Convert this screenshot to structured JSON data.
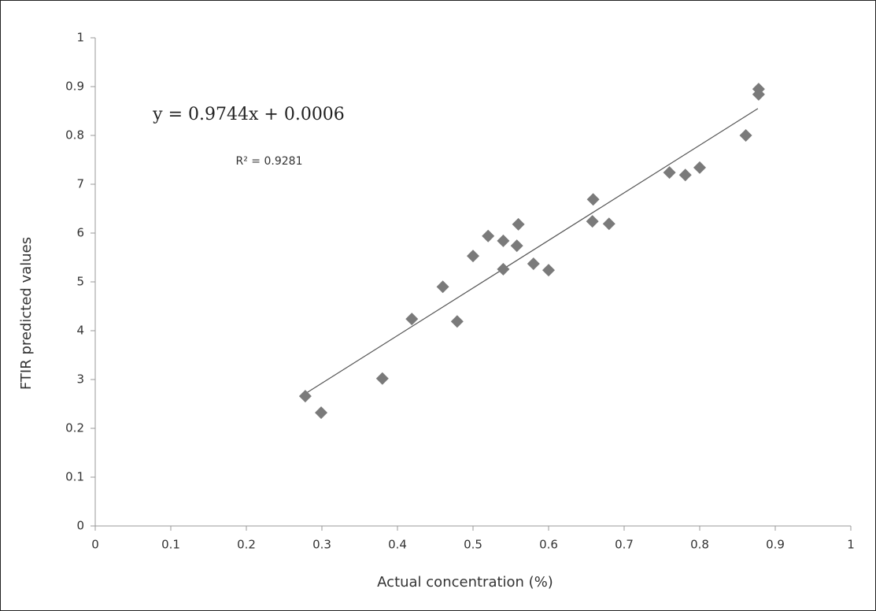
{
  "chart_data": {
    "type": "scatter",
    "xlabel": "Actual concentration (%)",
    "ylabel": "FTIR predicted values",
    "annotations": [
      "y = 0.9744x + 0.0006",
      "R² = 0.9281"
    ],
    "series": [
      {
        "color": "#7a7a7a",
        "x": [
          0.278,
          0.299,
          0.38,
          0.419,
          0.46,
          0.479,
          0.5,
          0.52,
          0.54,
          0.54,
          0.558,
          0.56,
          0.58,
          0.6,
          0.659,
          0.658,
          0.68,
          0.76,
          0.781,
          0.8,
          0.861,
          0.878,
          0.878
        ],
        "values": [
          0.266,
          0.232,
          0.302,
          0.424,
          0.49,
          0.419,
          0.553,
          0.594,
          0.584,
          0.526,
          0.574,
          0.618,
          0.537,
          0.524,
          0.669,
          0.624,
          0.619,
          0.724,
          0.719,
          0.734,
          0.8,
          0.895,
          0.884
        ]
      }
    ],
    "trendline": {
      "x": [
        0.28,
        0.877
      ],
      "values": [
        0.273,
        0.855
      ],
      "color": "#555555"
    },
    "xlim": [
      0,
      1
    ],
    "xticks": [
      0,
      0.1,
      0.2,
      0.3,
      0.4,
      0.5,
      0.6,
      0.7,
      0.8,
      0.9,
      1
    ],
    "ylim": [
      0,
      1
    ],
    "yticks": [
      0,
      0.1,
      0.2,
      {
        "value": 0.3,
        "label": "3"
      },
      {
        "value": 0.4,
        "label": "4"
      },
      {
        "value": 0.5,
        "label": "5"
      },
      {
        "value": 0.6,
        "label": "6"
      },
      {
        "value": 0.7,
        "label": "7"
      },
      0.8,
      0.9,
      1
    ],
    "grid": false
  }
}
